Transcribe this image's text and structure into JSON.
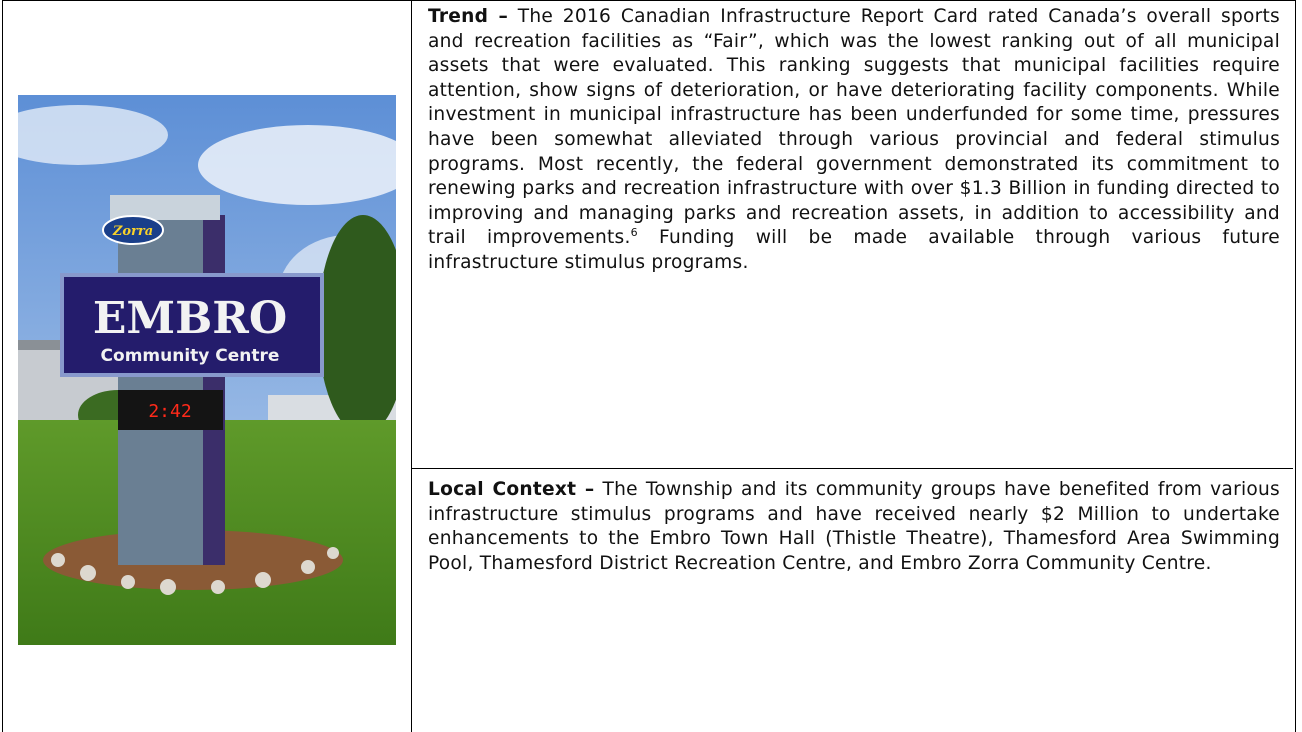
{
  "rows": [
    {
      "label": "Trend –",
      "text": "The 2016 Canadian Infrastructure Report Card rated Canada’s overall sports and recreation facilities as “Fair”, which was the lowest ranking out of all municipal assets that were evaluated. This ranking suggests that municipal facilities require attention, show signs of deterioration, or have deteriorating facility components. While investment in municipal infrastructure has been underfunded for some time, pressures have been somewhat alleviated through various provincial and federal stimulus programs. Most recently, the federal government demonstrated its commitment to renewing parks and recreation infrastructure with over $1.3 Billion in funding directed to improving and managing parks and recreation assets, in addition to accessibility and trail improvements.",
      "footnote": "6",
      "text_after": "Funding will be made available through various future infrastructure stimulus programs."
    },
    {
      "label": "Local Context –",
      "text": "The Township and its community groups have benefited from various infrastructure stimulus programs and have received nearly $2 Million to undertake enhancements to the Embro Town Hall (Thistle Theatre), Thamesford Area Swimming Pool, Thamesford District Recreation Centre, and Embro Zorra Community Centre."
    }
  ],
  "image": {
    "sign": {
      "top": "Zorra",
      "name": "EMBRO",
      "subtitle": "Community Centre",
      "clock": "2:42"
    }
  }
}
